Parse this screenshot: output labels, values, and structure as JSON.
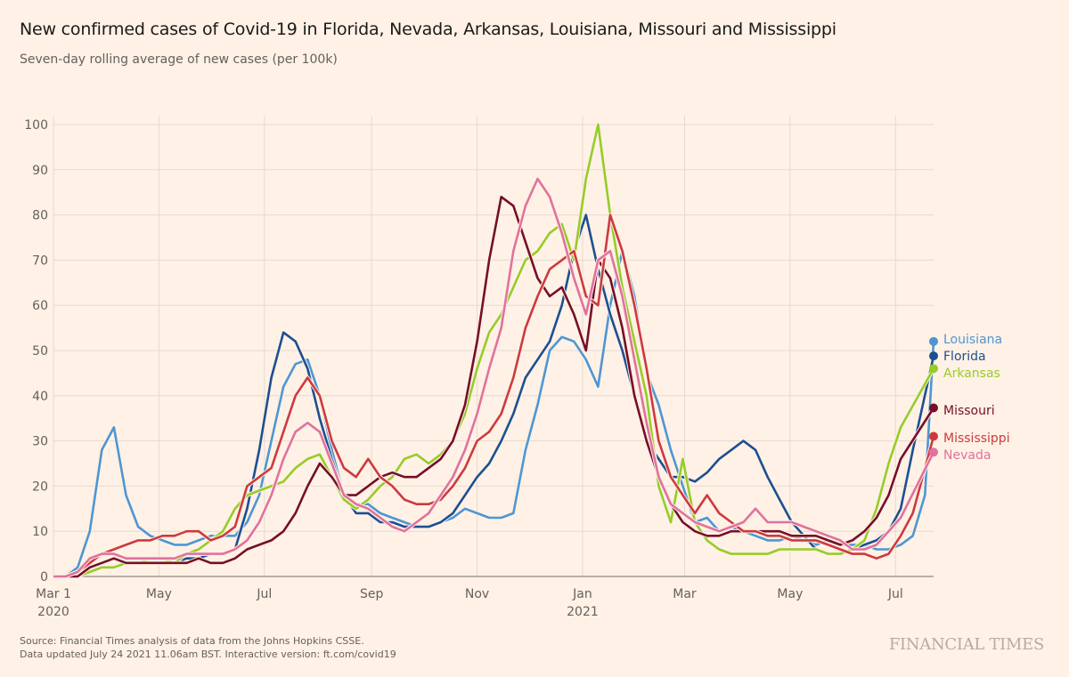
{
  "header": {
    "title": "New confirmed cases of Covid-19 in Florida, Nevada, Arkansas, Louisiana, Missouri and Mississippi",
    "subtitle": "Seven-day rolling average of new cases (per 100k)"
  },
  "footer": {
    "source_line1": "Source: Financial Times analysis of data from the Johns Hopkins CSSE.",
    "source_line2": "Data updated July 24 2021 11.06am BST. Interactive version: ft.com/covid19",
    "logo": "FINANCIAL TIMES"
  },
  "chart_data": {
    "type": "line",
    "title": "New confirmed cases of Covid-19 in Florida, Nevada, Arkansas, Louisiana, Missouri and Mississippi",
    "subtitle": "Seven-day rolling average of new cases (per 100k)",
    "xlabel": "",
    "ylabel": "",
    "ylim": [
      0,
      100
    ],
    "yticks": [
      0,
      10,
      20,
      30,
      40,
      50,
      60,
      70,
      80,
      90,
      100
    ],
    "x_start": "2020-03-01",
    "x_end": "2021-07-23",
    "x_step_days": 7,
    "xticks": [
      {
        "label": "Mar 1",
        "sublabel": "2020",
        "day": 0
      },
      {
        "label": "May",
        "sublabel": "",
        "day": 61
      },
      {
        "label": "Jul",
        "sublabel": "",
        "day": 122
      },
      {
        "label": "Sep",
        "sublabel": "",
        "day": 184
      },
      {
        "label": "Nov",
        "sublabel": "",
        "day": 245
      },
      {
        "label": "Jan",
        "sublabel": "2021",
        "day": 306
      },
      {
        "label": "Mar",
        "sublabel": "",
        "day": 365
      },
      {
        "label": "May",
        "sublabel": "",
        "day": 426
      },
      {
        "label": "Jul",
        "sublabel": "",
        "day": 487
      }
    ],
    "grid": true,
    "legend_placement": "right-end-labels",
    "series": [
      {
        "name": "Louisiana",
        "color": "#4e96d3",
        "values": [
          0,
          0,
          2,
          10,
          28,
          33,
          18,
          11,
          9,
          8,
          7,
          7,
          8,
          9,
          9,
          9,
          12,
          18,
          30,
          42,
          47,
          48,
          40,
          28,
          18,
          16,
          16,
          14,
          13,
          12,
          11,
          11,
          12,
          13,
          15,
          14,
          13,
          13,
          14,
          28,
          38,
          50,
          53,
          52,
          48,
          42,
          60,
          72,
          62,
          45,
          38,
          28,
          20,
          12,
          13,
          10,
          11,
          10,
          9,
          8,
          8,
          9,
          8,
          7,
          8,
          7,
          7,
          7,
          6,
          6,
          7,
          9,
          18,
          52
        ]
      },
      {
        "name": "Florida",
        "color": "#1d4f91",
        "values": [
          0,
          0,
          1,
          4,
          5,
          5,
          4,
          4,
          4,
          4,
          3,
          4,
          4,
          5,
          5,
          6,
          15,
          28,
          44,
          54,
          52,
          46,
          35,
          26,
          18,
          14,
          14,
          12,
          12,
          11,
          11,
          11,
          12,
          14,
          18,
          22,
          25,
          30,
          36,
          44,
          48,
          52,
          60,
          72,
          80,
          68,
          58,
          50,
          40,
          30,
          26,
          22,
          22,
          21,
          23,
          26,
          28,
          30,
          28,
          22,
          17,
          12,
          9,
          6,
          5,
          5,
          6,
          7,
          8,
          10,
          15,
          28,
          48.8
        ]
      },
      {
        "name": "Arkansas",
        "color": "#96cc28",
        "values": [
          0,
          0,
          0,
          1,
          2,
          2,
          3,
          3,
          4,
          4,
          3,
          5,
          6,
          8,
          10,
          15,
          18,
          19,
          20,
          21,
          24,
          26,
          27,
          22,
          17,
          15,
          17,
          20,
          22,
          26,
          27,
          25,
          27,
          30,
          36,
          46,
          54,
          58,
          64,
          70,
          72,
          76,
          78,
          70,
          88,
          100,
          80,
          64,
          52,
          40,
          20,
          12,
          26,
          12,
          8,
          6,
          5,
          5,
          5,
          5,
          6,
          6,
          6,
          6,
          5,
          5,
          6,
          8,
          15,
          25,
          33,
          46
        ]
      },
      {
        "name": "Missouri",
        "color": "#750f29",
        "values": [
          0,
          0,
          0,
          2,
          3,
          4,
          3,
          3,
          3,
          3,
          3,
          3,
          4,
          3,
          3,
          4,
          6,
          7,
          8,
          10,
          14,
          20,
          25,
          22,
          18,
          18,
          20,
          22,
          23,
          22,
          22,
          24,
          26,
          30,
          38,
          52,
          70,
          84,
          82,
          74,
          66,
          62,
          64,
          58,
          50,
          70,
          66,
          55,
          40,
          30,
          22,
          16,
          12,
          10,
          9,
          9,
          10,
          10,
          10,
          10,
          10,
          9,
          9,
          9,
          8,
          7,
          8,
          10,
          13,
          18,
          26,
          37.3
        ]
      },
      {
        "name": "Mississippi",
        "color": "#cc3a40",
        "values": [
          0,
          0,
          1,
          3,
          5,
          6,
          7,
          8,
          8,
          9,
          9,
          10,
          10,
          8,
          9,
          11,
          20,
          22,
          24,
          32,
          40,
          44,
          40,
          30,
          24,
          22,
          26,
          22,
          20,
          17,
          16,
          16,
          17,
          20,
          24,
          30,
          32,
          36,
          44,
          55,
          62,
          68,
          70,
          72,
          62,
          60,
          80,
          72,
          60,
          46,
          30,
          22,
          18,
          14,
          18,
          14,
          12,
          10,
          10,
          9,
          9,
          8,
          8,
          8,
          7,
          6,
          5,
          5,
          4,
          5,
          9,
          14,
          31
        ]
      },
      {
        "name": "Nevada",
        "color": "#e0729d",
        "values": [
          0,
          0,
          1,
          4,
          5,
          5,
          4,
          4,
          4,
          4,
          4,
          5,
          5,
          5,
          5,
          6,
          8,
          12,
          18,
          26,
          32,
          34,
          32,
          25,
          18,
          16,
          15,
          13,
          11,
          10,
          12,
          14,
          18,
          22,
          28,
          36,
          46,
          55,
          72,
          82,
          88,
          84,
          76,
          66,
          58,
          70,
          72,
          62,
          48,
          34,
          22,
          16,
          14,
          12,
          11,
          10,
          11,
          12,
          15,
          12,
          12,
          12,
          11,
          10,
          9,
          8,
          6,
          6,
          7,
          10,
          13,
          27.5
        ]
      }
    ]
  }
}
